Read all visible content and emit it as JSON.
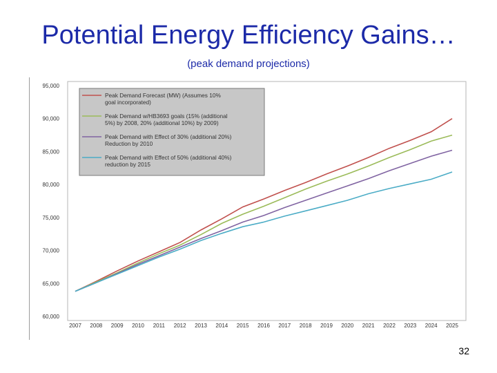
{
  "slide": {
    "title": "Potential Energy Efficiency Gains…",
    "subtitle": "(peak demand projections)",
    "page_number": "32"
  },
  "chart_data": {
    "type": "line",
    "title": "",
    "xlabel": "",
    "ylabel": "",
    "x": [
      2007,
      2008,
      2009,
      2010,
      2011,
      2012,
      2013,
      2014,
      2015,
      2016,
      2017,
      2018,
      2019,
      2020,
      2021,
      2022,
      2023,
      2024,
      2025
    ],
    "y_tick_labels": [
      "60,000",
      "65,000",
      "70,000",
      "75,000",
      "80,000",
      "85,000",
      "90,000",
      "95,000"
    ],
    "ylim": [
      60000,
      95000
    ],
    "grid": false,
    "legend_position": "top-left",
    "series": [
      {
        "name": "Peak Demand Forecast (MW) (Assumes 10% goal incorporated)",
        "legend_lines": [
          "Peak Demand Forecast (MW) (Assumes 10%",
          "goal incorporated)"
        ],
        "color": "#c0504d",
        "values": [
          63800,
          65300,
          66900,
          68400,
          69800,
          71200,
          73100,
          74800,
          76600,
          77800,
          79100,
          80300,
          81600,
          82800,
          84100,
          85500,
          86700,
          88000,
          90000
        ]
      },
      {
        "name": "Peak Demand w/HB3693 goals (15% (additional 5%) by 2008, 20% (additional 10%) by 2009)",
        "legend_lines": [
          "Peak Demand w/HB3693 goals (15% (additional",
          "5%) by 2008, 20% (additional 10%) by 2009)"
        ],
        "color": "#9bbb59",
        "values": [
          63800,
          65200,
          66600,
          68100,
          69500,
          70800,
          72400,
          74100,
          75500,
          76700,
          78000,
          79300,
          80500,
          81600,
          82800,
          84100,
          85300,
          86600,
          87500
        ]
      },
      {
        "name": "Peak Demand with Effect of 30% (additional 20%) Reduction by 2010",
        "legend_lines": [
          "Peak Demand with Effect of 30% (additional 20%)",
          "Reduction by 2010"
        ],
        "color": "#8064a2",
        "values": [
          63800,
          65100,
          66500,
          67900,
          69200,
          70500,
          71800,
          73000,
          74300,
          75300,
          76500,
          77600,
          78700,
          79800,
          80900,
          82100,
          83200,
          84300,
          85200
        ]
      },
      {
        "name": "Peak Demand with Effect of 50% (additional 40%) reduction by 2015",
        "legend_lines": [
          "Peak Demand with Effect of 50% (additional 40%)",
          "reduction by 2015"
        ],
        "color": "#4bacc6",
        "values": [
          63800,
          65100,
          66400,
          67700,
          69000,
          70200,
          71500,
          72600,
          73600,
          74300,
          75200,
          76000,
          76800,
          77600,
          78600,
          79400,
          80100,
          80800,
          81900
        ]
      }
    ]
  }
}
